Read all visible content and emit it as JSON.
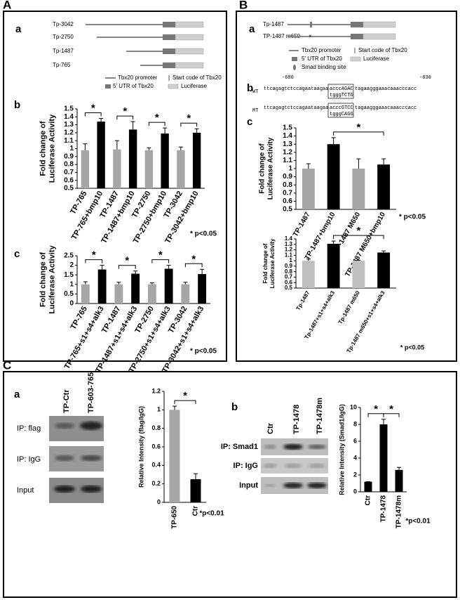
{
  "panel_labels": [
    "A",
    "B",
    "C"
  ],
  "sub_labels": {
    "A_a": "a",
    "A_b": "b",
    "A_c": "c",
    "B_a": "a",
    "B_b": "b",
    "B_c": "c",
    "C_a": "a",
    "C_b": "b"
  },
  "diagram_A": {
    "constructs": [
      "Tp-3042",
      "Tp-2750",
      "Tp-1487",
      "Tp-765"
    ],
    "legend": [
      "Tbx20 promoter",
      "Start code of Tbx20",
      "5' UTR of Tbx20",
      "Luciferase"
    ]
  },
  "diagram_B": {
    "constructs": [
      "Tp-1487",
      "TP-1487 m650"
    ],
    "legend": [
      "Tbx20 promoter",
      "Start code of Tbx20",
      "5' UTR of Tbx20",
      "Luciferase",
      "Smad binding site"
    ]
  },
  "sequence": {
    "start": "-680",
    "end": "-630",
    "wt": {
      "label": "WT",
      "left": "ttcagagtctccagaataagaa",
      "box_top": "acccAGAC",
      "box_bottom": "tgggTCTG",
      "right": "tagaagggaaacaaacccacc"
    },
    "mt": {
      "label": "MT",
      "left": "ttcagagtctccagaataagaa",
      "box_top": "acccGTCC",
      "box_bottom": "tgggCAGG",
      "right": "tagaagggaaacaaacccacc"
    }
  },
  "gel_a": {
    "columns": [
      "TP-Ctr",
      "TP-603-765"
    ],
    "rows": [
      "IP: flag",
      "IP: IgG",
      "Input"
    ]
  },
  "gel_b": {
    "columns": [
      "Ctr",
      "TP-1478",
      "TP-1478m"
    ],
    "rows": [
      "IP: Smad1",
      "IP: IgG",
      "Input"
    ]
  },
  "chart_data": [
    {
      "type": "bar",
      "ylabel": [
        "Fold change of",
        "Luciferase Activity"
      ],
      "categories": [
        "TP-765",
        "TP-765+bmp10",
        "TP-1487",
        "TP-1487+bmp10",
        "TP-2750",
        "TP-2750+bmp10",
        "TP-3042",
        "TP-3042+bmp10"
      ],
      "values": [
        0.98,
        1.34,
        0.99,
        1.24,
        0.98,
        1.19,
        0.98,
        1.2
      ],
      "errors": [
        0.08,
        0.04,
        0.11,
        0.1,
        0.03,
        0.07,
        0.04,
        0.05
      ],
      "colors": [
        "#a6a6a6",
        "#000000",
        "#a6a6a6",
        "#000000",
        "#a6a6a6",
        "#000000",
        "#a6a6a6",
        "#000000"
      ],
      "ylim": [
        0.5,
        1.5
      ],
      "yticks": [
        0.5,
        0.6,
        0.7,
        0.8,
        0.9,
        1,
        1.1,
        1.2,
        1.3,
        1.4,
        1.5
      ],
      "brackets": [
        {
          "from": "TP-765",
          "to": "TP-765+bmp10",
          "label": "*"
        },
        {
          "from": "TP-1487",
          "to": "TP-1487+bmp10",
          "label": "*"
        },
        {
          "from": "TP-2750",
          "to": "TP-2750+bmp10",
          "label": "*"
        },
        {
          "from": "TP-3042",
          "to": "TP-3042+bmp10",
          "label": "*"
        }
      ],
      "note": "* p<0.05"
    },
    {
      "type": "bar",
      "ylabel": [
        "Fold change of",
        "Luciferase Activity"
      ],
      "categories": [
        "TP-765",
        "TP-765+s1+s4+alk3",
        "TP-1487",
        "TP-1487+s1+s4+alk3",
        "TP-2750",
        "TP-2750+s1+s4+alk3",
        "TP-3042",
        "TP-3042+s1+s4+alk3"
      ],
      "values": [
        1.0,
        1.78,
        1.01,
        1.56,
        1.01,
        1.82,
        1.01,
        1.54
      ],
      "errors": [
        0.14,
        0.22,
        0.1,
        0.14,
        0.07,
        0.18,
        0.1,
        0.25
      ],
      "colors": [
        "#a6a6a6",
        "#000000",
        "#a6a6a6",
        "#000000",
        "#a6a6a6",
        "#000000",
        "#a6a6a6",
        "#000000"
      ],
      "ylim": [
        0,
        2.5
      ],
      "yticks": [
        0,
        0.5,
        1,
        1.5,
        2,
        2.5
      ],
      "brackets": [
        {
          "from": "TP-765",
          "to": "TP-765+s1+s4+alk3",
          "label": "*"
        },
        {
          "from": "TP-1487",
          "to": "TP-1487+s1+s4+alk3",
          "label": "*"
        },
        {
          "from": "TP-2750",
          "to": "TP-2750+s1+s4+alk3",
          "label": "*"
        },
        {
          "from": "TP-3042",
          "to": "TP-3042+s1+s4+alk3",
          "label": "*"
        }
      ],
      "note": "* p<0.05"
    },
    {
      "type": "bar",
      "ylabel": [
        "Fold change of",
        "Luciferase Activity"
      ],
      "categories": [
        "TP-1487",
        "TP-1487+bmp10",
        "TP-1487 M650",
        "TP-1487 M650+bmp10"
      ],
      "values": [
        1.0,
        1.3,
        1.0,
        1.05
      ],
      "errors": [
        0.06,
        0.08,
        0.12,
        0.07
      ],
      "colors": [
        "#a6a6a6",
        "#000000",
        "#a6a6a6",
        "#000000"
      ],
      "ylim": [
        0.5,
        1.5
      ],
      "yticks": [
        0.5,
        0.6,
        0.7,
        0.8,
        0.9,
        1,
        1.1,
        1.2,
        1.3,
        1.4,
        1.5
      ],
      "brackets": [
        {
          "from": "TP-1487+bmp10",
          "to": "TP-1487 M650+bmp10",
          "label": "*"
        }
      ],
      "note": "* p<0.05"
    },
    {
      "type": "bar",
      "ylabel": [
        "Fold change of",
        "Luciferase Activity"
      ],
      "categories": [
        "Tp-1487",
        "Tp-1487+s1+s4+alk3",
        "Tp-1487 m650",
        "Tp-1487 m650+s1+s4+alk3"
      ],
      "values": [
        1.0,
        1.31,
        1.0,
        1.15
      ],
      "errors": [
        0.03,
        0.05,
        0.01,
        0.03
      ],
      "colors": [
        "#bfbfbf",
        "#000000",
        "#bfbfbf",
        "#000000"
      ],
      "ylim": [
        0.5,
        1.4
      ],
      "yticks": [
        0.5,
        0.6,
        0.7,
        0.8,
        0.9,
        1,
        1.1,
        1.2,
        1.3,
        1.4
      ],
      "brackets": [
        {
          "from": "Tp-1487+s1+s4+alk3",
          "to": "Tp-1487 m650+s1+s4+alk3",
          "label": "*"
        }
      ],
      "note": "* p<0.05"
    },
    {
      "type": "bar",
      "ylabel": [
        "Relative Intensity (flag/IgG)"
      ],
      "categories": [
        "TP-650",
        "Ctr"
      ],
      "values": [
        1.0,
        0.25
      ],
      "errors": [
        0.04,
        0.06
      ],
      "colors": [
        "#a6a6a6",
        "#000000"
      ],
      "ylim": [
        0,
        1.2
      ],
      "yticks": [
        0,
        0.2,
        0.4,
        0.6,
        0.8,
        1,
        1.2
      ],
      "brackets": [
        {
          "from": "TP-650",
          "to": "Ctr",
          "label": "*"
        }
      ],
      "note": "*p<0.01"
    },
    {
      "type": "bar",
      "ylabel": [
        "Relative Intensity (Smad1/IgG)"
      ],
      "categories": [
        "Ctr",
        "TP-1478",
        "TP-1478m"
      ],
      "values": [
        1.2,
        8.0,
        2.6
      ],
      "errors": [
        0,
        0.6,
        0.3
      ],
      "colors": [
        "#000000",
        "#000000",
        "#000000"
      ],
      "ylim": [
        0,
        10
      ],
      "yticks": [
        0,
        2,
        4,
        6,
        8,
        10
      ],
      "brackets": [
        {
          "from": "Ctr",
          "to": "TP-1478",
          "label": "*"
        },
        {
          "from": "TP-1478",
          "to": "TP-1478m",
          "label": "*"
        }
      ],
      "note": "*p<0.01"
    }
  ]
}
